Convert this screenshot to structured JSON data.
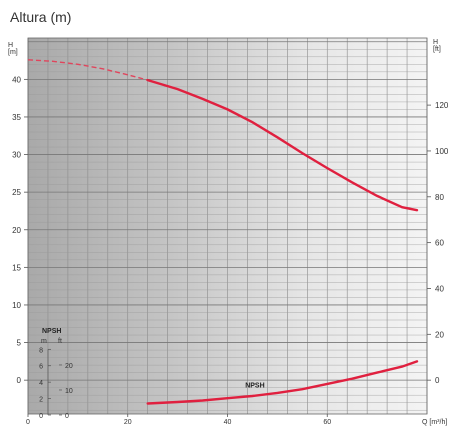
{
  "chart_data": {
    "type": "line",
    "title": "Altura (m)",
    "left_axis": {
      "unit_label": [
        "H",
        "[m]"
      ],
      "ticks": [
        0,
        5,
        10,
        15,
        20,
        25,
        30,
        35,
        40
      ],
      "ylim": [
        -4.5,
        45.5
      ]
    },
    "right_axis": {
      "unit_label": [
        "H",
        "[ft]"
      ],
      "ticks": [
        0,
        20,
        40,
        60,
        80,
        100,
        120
      ]
    },
    "x_axis": {
      "unit_label": "Q [m³/h]",
      "ticks": [
        0,
        20,
        40,
        60
      ],
      "xlim": [
        0,
        80
      ]
    },
    "grid": true,
    "series": [
      {
        "x": [
          0,
          5,
          10,
          15,
          20,
          24,
          30,
          35,
          40,
          45,
          50,
          55,
          60,
          65,
          70,
          75,
          78
        ],
        "y": [
          42.6,
          42.4,
          42.0,
          41.4,
          40.6,
          39.9,
          38.7,
          37.4,
          36.0,
          34.3,
          32.3,
          30.2,
          28.2,
          26.3,
          24.5,
          23.0,
          22.6
        ],
        "dashed_until_x": 24
      },
      {
        "name": "NPSH",
        "x": [
          24,
          30,
          35,
          40,
          45,
          50,
          55,
          60,
          65,
          70,
          75,
          78
        ],
        "y": [
          -3.1,
          -2.9,
          -2.7,
          -2.4,
          -2.1,
          -1.7,
          -1.2,
          -0.5,
          0.2,
          1.0,
          1.8,
          2.5
        ]
      }
    ],
    "npsh_inset": {
      "title": "NPSH",
      "m_label": "m",
      "ft_label": "ft",
      "m_ticks": [
        0,
        2,
        4,
        6,
        8
      ],
      "ft_ticks": [
        0,
        10,
        20
      ]
    }
  }
}
